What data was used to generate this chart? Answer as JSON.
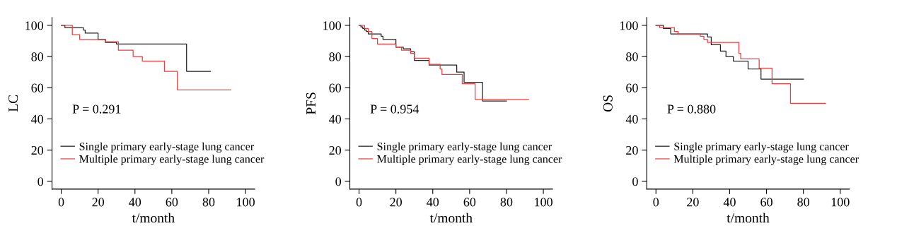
{
  "chart_data": [
    {
      "type": "step",
      "ylabel": "LC",
      "xlabel": "t/month",
      "xlim": [
        -5,
        105
      ],
      "ylim": [
        -5,
        105
      ],
      "xticks": [
        0,
        20,
        40,
        60,
        80,
        100
      ],
      "yticks": [
        0,
        20,
        40,
        60,
        80,
        100
      ],
      "legend": "bottom",
      "grid": false,
      "annotations": [
        "P = 0.291"
      ],
      "series": [
        {
          "name": "Single primary early-stage lung cancer",
          "color": "#222222",
          "x": [
            0,
            2,
            12,
            13,
            20,
            24,
            30,
            68,
            81
          ],
          "values": [
            100,
            98.5,
            97,
            95,
            91,
            89,
            88,
            70.5,
            70.5
          ]
        },
        {
          "name": "Multiple primary early-stage lung cancer",
          "color": "#f03c3c",
          "x": [
            0,
            6,
            10,
            24,
            31,
            39,
            44,
            56,
            63,
            92
          ],
          "values": [
            100,
            94,
            91,
            89.5,
            84,
            80,
            77,
            70.5,
            58.6,
            58.6
          ]
        }
      ]
    },
    {
      "type": "step",
      "ylabel": "PFS",
      "xlabel": "t/month",
      "xlim": [
        -5,
        105
      ],
      "ylim": [
        -5,
        105
      ],
      "xticks": [
        0,
        20,
        40,
        60,
        80,
        100
      ],
      "yticks": [
        0,
        20,
        40,
        60,
        80,
        100
      ],
      "legend": "bottom",
      "grid": false,
      "annotations": [
        "P = 0.954"
      ],
      "series": [
        {
          "name": "Single primary early-stage lung cancer",
          "color": "#222222",
          "x": [
            0,
            1,
            2,
            3,
            4,
            5,
            12,
            13,
            20,
            24,
            28,
            30,
            38,
            53,
            57,
            67,
            80
          ],
          "values": [
            100,
            99,
            98,
            97,
            96,
            94.5,
            93,
            91,
            86,
            85,
            83,
            77.5,
            74.5,
            70,
            63.5,
            51.5,
            51.5
          ]
        },
        {
          "name": "Multiple primary early-stage lung cancer",
          "color": "#f03c3c",
          "x": [
            0,
            3,
            5,
            7,
            10,
            20,
            23,
            28,
            30,
            38,
            44,
            45,
            56,
            63,
            92
          ],
          "values": [
            100,
            98,
            96,
            91.5,
            88,
            86,
            84,
            82,
            79,
            75,
            72,
            68.5,
            62.5,
            52.5,
            52.5
          ]
        }
      ]
    },
    {
      "type": "step",
      "ylabel": "OS",
      "xlabel": "t/month",
      "xlim": [
        -5,
        105
      ],
      "ylim": [
        -5,
        105
      ],
      "xticks": [
        0,
        20,
        40,
        60,
        80,
        100
      ],
      "yticks": [
        0,
        20,
        40,
        60,
        80,
        100
      ],
      "legend": "bottom",
      "grid": false,
      "annotations": [
        "P = 0.880"
      ],
      "series": [
        {
          "name": "Single primary early-stage lung cancer",
          "color": "#222222",
          "x": [
            0,
            4,
            8,
            28,
            30,
            35,
            38,
            42,
            50,
            57,
            80
          ],
          "values": [
            100,
            98,
            94.5,
            92.5,
            87.5,
            83.5,
            80,
            77,
            72,
            65.5,
            65.5
          ]
        },
        {
          "name": "Multiple primary early-stage lung cancer",
          "color": "#f03c3c",
          "x": [
            0,
            2,
            10,
            12,
            24,
            26,
            28,
            45,
            46,
            56,
            63,
            73,
            92
          ],
          "values": [
            100,
            98.5,
            96,
            94.5,
            93,
            91,
            89,
            82,
            78.5,
            72.5,
            62.5,
            50,
            50
          ]
        }
      ]
    }
  ]
}
